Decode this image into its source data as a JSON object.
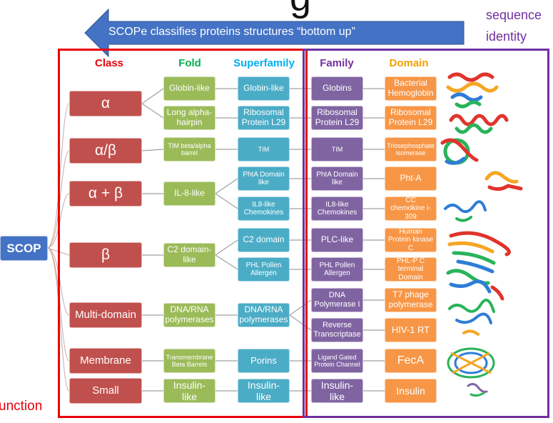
{
  "title_fragment": "g",
  "arrow_text": "SCOPe classifies proteins structures “bottom up”",
  "sequence_label": [
    "sequence",
    "identity"
  ],
  "function_label": "unction",
  "root_label": "SCOP",
  "headers": {
    "class": "Class",
    "fold": "Fold",
    "superfamily": "Superfamily",
    "family": "Family",
    "domain": "Domain"
  },
  "colors": {
    "class": "#c0504d",
    "fold": "#9bbb59",
    "superfamily": "#4bacc6",
    "family": "#8064a2",
    "domain": "#f79646",
    "red_frame": "#e8000b",
    "purple_frame": "#7030a0",
    "arrow": "#4472c4"
  },
  "classes": [
    "α",
    "α/β",
    "α + β",
    "β",
    "Multi-domain",
    "Membrane",
    "Small"
  ],
  "folds": [
    "Globin-like",
    "Long alpha-hairpin",
    "TIM beta/alpha barrel",
    "IL-8-like",
    "C2 domain-like",
    "DNA/RNA polymerases",
    "Transmembrane Beta Barrels",
    "Insulin-like"
  ],
  "superfamilies": [
    "Globin-like",
    "Ribosomal Protein L29",
    "TIM",
    "PhtA Domain like",
    "IL8-like Chemokines",
    "C2 domain",
    "PHL Pollen Allergen",
    "DNA/RNA polymerases",
    "Porins",
    "Insulin-like"
  ],
  "families": [
    "Globins",
    "Ribosomal Protein L29",
    "TIM",
    "PhtA Domain like",
    "IL8-like Chemokines",
    "PLC-like",
    "PHL Pollen Allergen",
    "DNA Polymerase I",
    "Reverse Transcriptase",
    "Ligand Gated Protein Channel",
    "Insulin-like"
  ],
  "domains": [
    "Bacterial Hemoglobin",
    "Ribosomal Protein L29",
    "Triosephosphate isomerase",
    "Pht-A",
    "CC chemokine i-309",
    "Human Protein kinase C",
    "PHL-P C terminal Domain",
    "T7 phage polymerase",
    "HIV-1 RT",
    "FecA",
    "Insulin"
  ]
}
